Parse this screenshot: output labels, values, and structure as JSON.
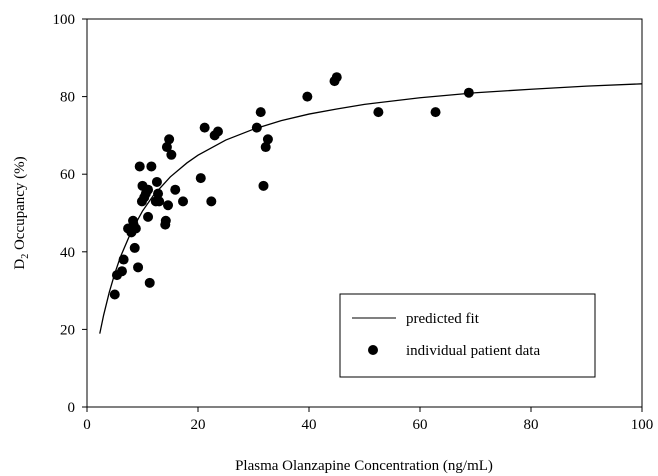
{
  "chart_data": {
    "type": "scatter",
    "title": "",
    "xlabel": "Plasma Olanzapine Concentration (ng/mL)",
    "ylabel_main": "D",
    "ylabel_sub": "2",
    "ylabel_rest": " Occupancy (%)",
    "xlim": [
      0,
      100
    ],
    "ylim": [
      0,
      100
    ],
    "xticks": [
      0,
      20,
      40,
      60,
      80,
      100
    ],
    "yticks": [
      0,
      20,
      40,
      60,
      80,
      100
    ],
    "grid": false,
    "legend_position": "lower-right",
    "series": [
      {
        "name": "predicted fit",
        "kind": "line",
        "color": "#000000",
        "x": [
          2.3,
          3,
          4,
          5,
          6,
          8,
          10,
          12,
          15,
          18,
          20,
          25,
          30,
          35,
          40,
          45,
          50,
          60,
          70,
          80,
          90,
          100
        ],
        "y": [
          18.9,
          23.7,
          29.5,
          34.4,
          38.6,
          45.3,
          50.5,
          54.6,
          59.3,
          62.9,
          64.9,
          68.8,
          71.6,
          73.8,
          75.5,
          76.8,
          78.0,
          79.7,
          81.0,
          81.9,
          82.7,
          83.3
        ]
      },
      {
        "name": "individual patient data",
        "kind": "scatter",
        "color": "#000000",
        "x": [
          5.0,
          5.4,
          6.3,
          6.6,
          7.4,
          7.8,
          8.0,
          8.3,
          8.4,
          8.6,
          8.8,
          9.2,
          9.5,
          9.9,
          10.0,
          10.3,
          10.6,
          11.0,
          11.0,
          11.3,
          11.6,
          12.4,
          12.6,
          12.8,
          13.0,
          14.1,
          14.2,
          14.4,
          14.6,
          14.8,
          15.2,
          15.9,
          17.3,
          20.5,
          21.2,
          22.4,
          23.0,
          23.6,
          30.6,
          31.3,
          31.8,
          32.2,
          32.6,
          39.7,
          44.6,
          45.0,
          52.5,
          62.8,
          68.8
        ],
        "y": [
          29,
          34,
          35,
          38,
          46,
          46,
          45,
          48,
          47,
          41,
          46,
          36,
          62,
          53,
          57,
          54,
          55,
          49,
          56,
          32,
          62,
          53,
          58,
          55,
          53,
          47,
          48,
          67,
          52,
          69,
          65,
          56,
          53,
          59,
          72,
          53,
          70,
          71,
          72,
          76,
          57,
          67,
          69,
          80,
          84,
          85,
          76,
          76,
          81
        ]
      }
    ]
  }
}
